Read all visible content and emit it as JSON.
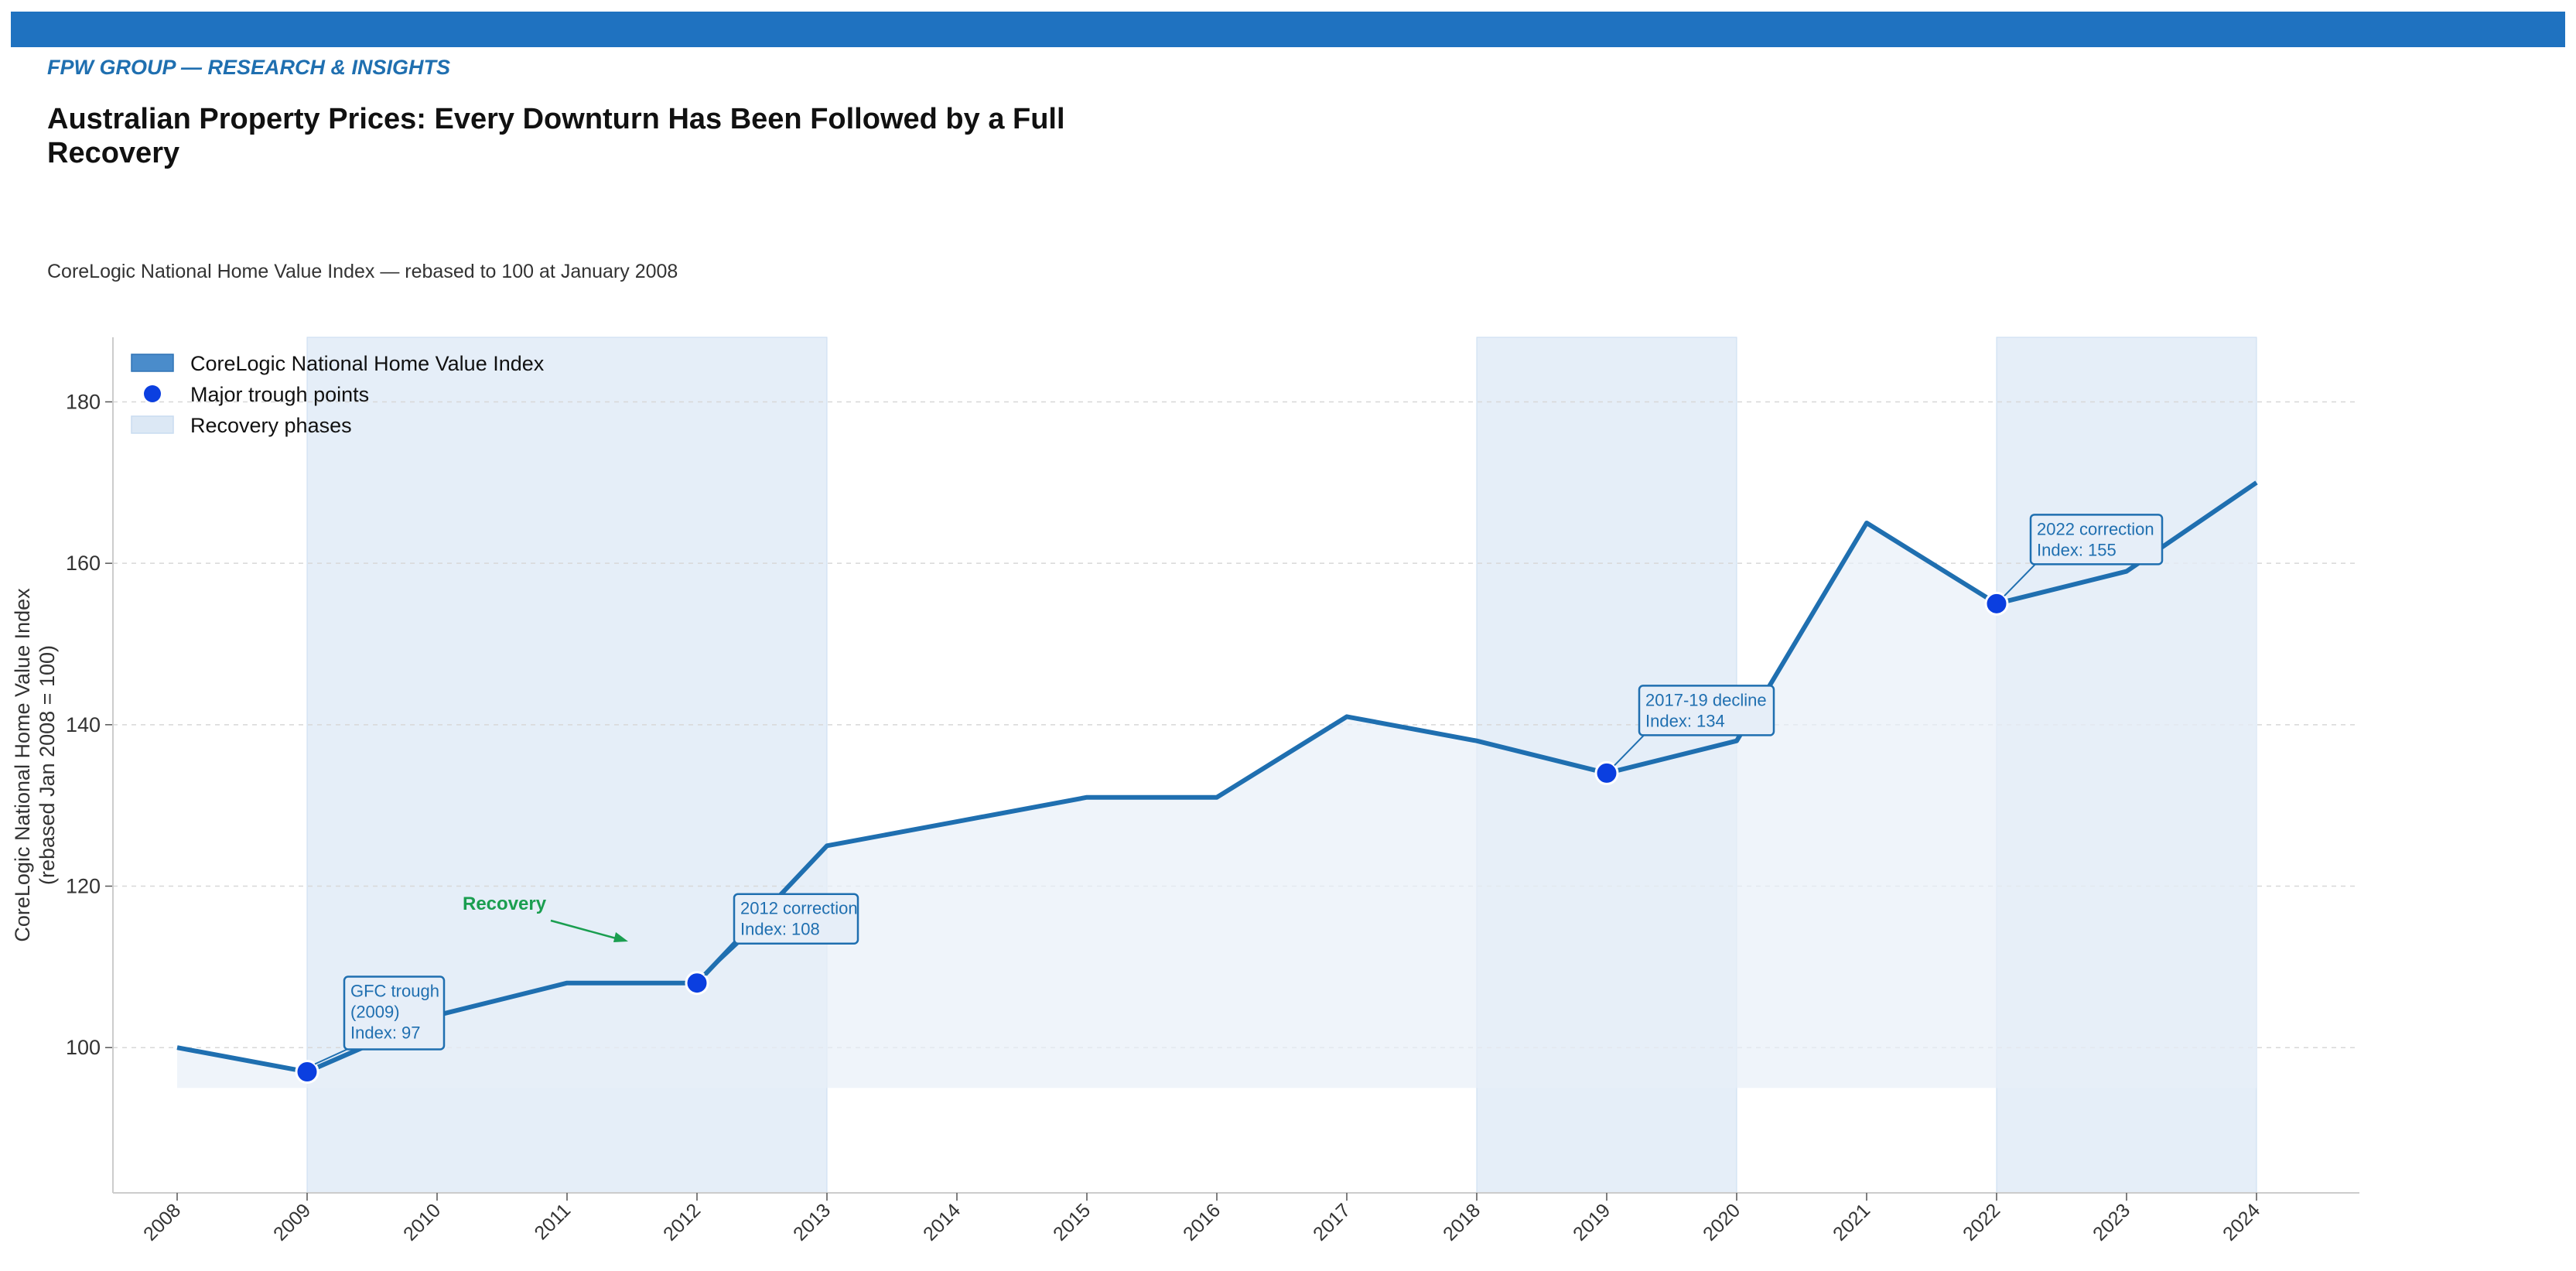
{
  "header": {
    "brand": "FPW GROUP — RESEARCH & INSIGHTS",
    "title": "Australian Property Prices: Every Downturn Has Been Followed by a Full Recovery",
    "subtitle": "CoreLogic National Home Value Index — rebased to 100 at January 2008"
  },
  "colors": {
    "brand_bar": "#1f72c0",
    "brand_text": "#1f6fb0",
    "line": "#1f6fb0",
    "trough": "#0b3fe0",
    "shade": "#dce8f5",
    "area": "#e8f0f8",
    "recovery": "#1a9e50"
  },
  "chart_data": {
    "type": "line",
    "title": "Australian Property Prices: Every Downturn Has Been Followed by a Full Recovery",
    "subtitle": "CoreLogic National Home Value Index — rebased to 100 at January 2008",
    "xlabel": "",
    "ylabel": "CoreLogic National Home Value Index\n(rebased Jan 2008 = 100)",
    "ylim": [
      82,
      188
    ],
    "yticks": [
      100,
      120,
      140,
      160,
      180
    ],
    "grid": true,
    "legend_position": "top-left",
    "x": [
      "2008",
      "2009",
      "2010",
      "2011",
      "2012",
      "2013",
      "2014",
      "2015",
      "2016",
      "2017",
      "2018",
      "2019",
      "2020",
      "2021",
      "2022",
      "2023",
      "2024"
    ],
    "series": [
      {
        "name": "CoreLogic National Home Value Index",
        "values": [
          100,
          97,
          104,
          108,
          108,
          125,
          128,
          131,
          131,
          141,
          138,
          134,
          138,
          165,
          155,
          159,
          170
        ]
      }
    ],
    "troughs": {
      "name": "Major trough points",
      "points": [
        {
          "x": "2009",
          "y": 97
        },
        {
          "x": "2012",
          "y": 108
        },
        {
          "x": "2019",
          "y": 134
        },
        {
          "x": "2022",
          "y": 155
        }
      ]
    },
    "recovery_phases": {
      "name": "Recovery phases",
      "ranges": [
        [
          "2009",
          "2013"
        ],
        [
          "2018",
          "2020"
        ],
        [
          "2022",
          "2024"
        ]
      ]
    },
    "area_baseline": 95,
    "annotations": [
      {
        "text": "GFC trough\n(2009)\nIndex: 97",
        "x": "2009",
        "y": 97
      },
      {
        "text": "2012 correction\nIndex: 108",
        "x": "2012",
        "y": 108
      },
      {
        "text": "2017-19 decline\nIndex: 134",
        "x": "2019",
        "y": 134
      },
      {
        "text": "2022 correction\nIndex: 155",
        "x": "2022",
        "y": 155
      }
    ],
    "recovery_label": "Recovery"
  }
}
